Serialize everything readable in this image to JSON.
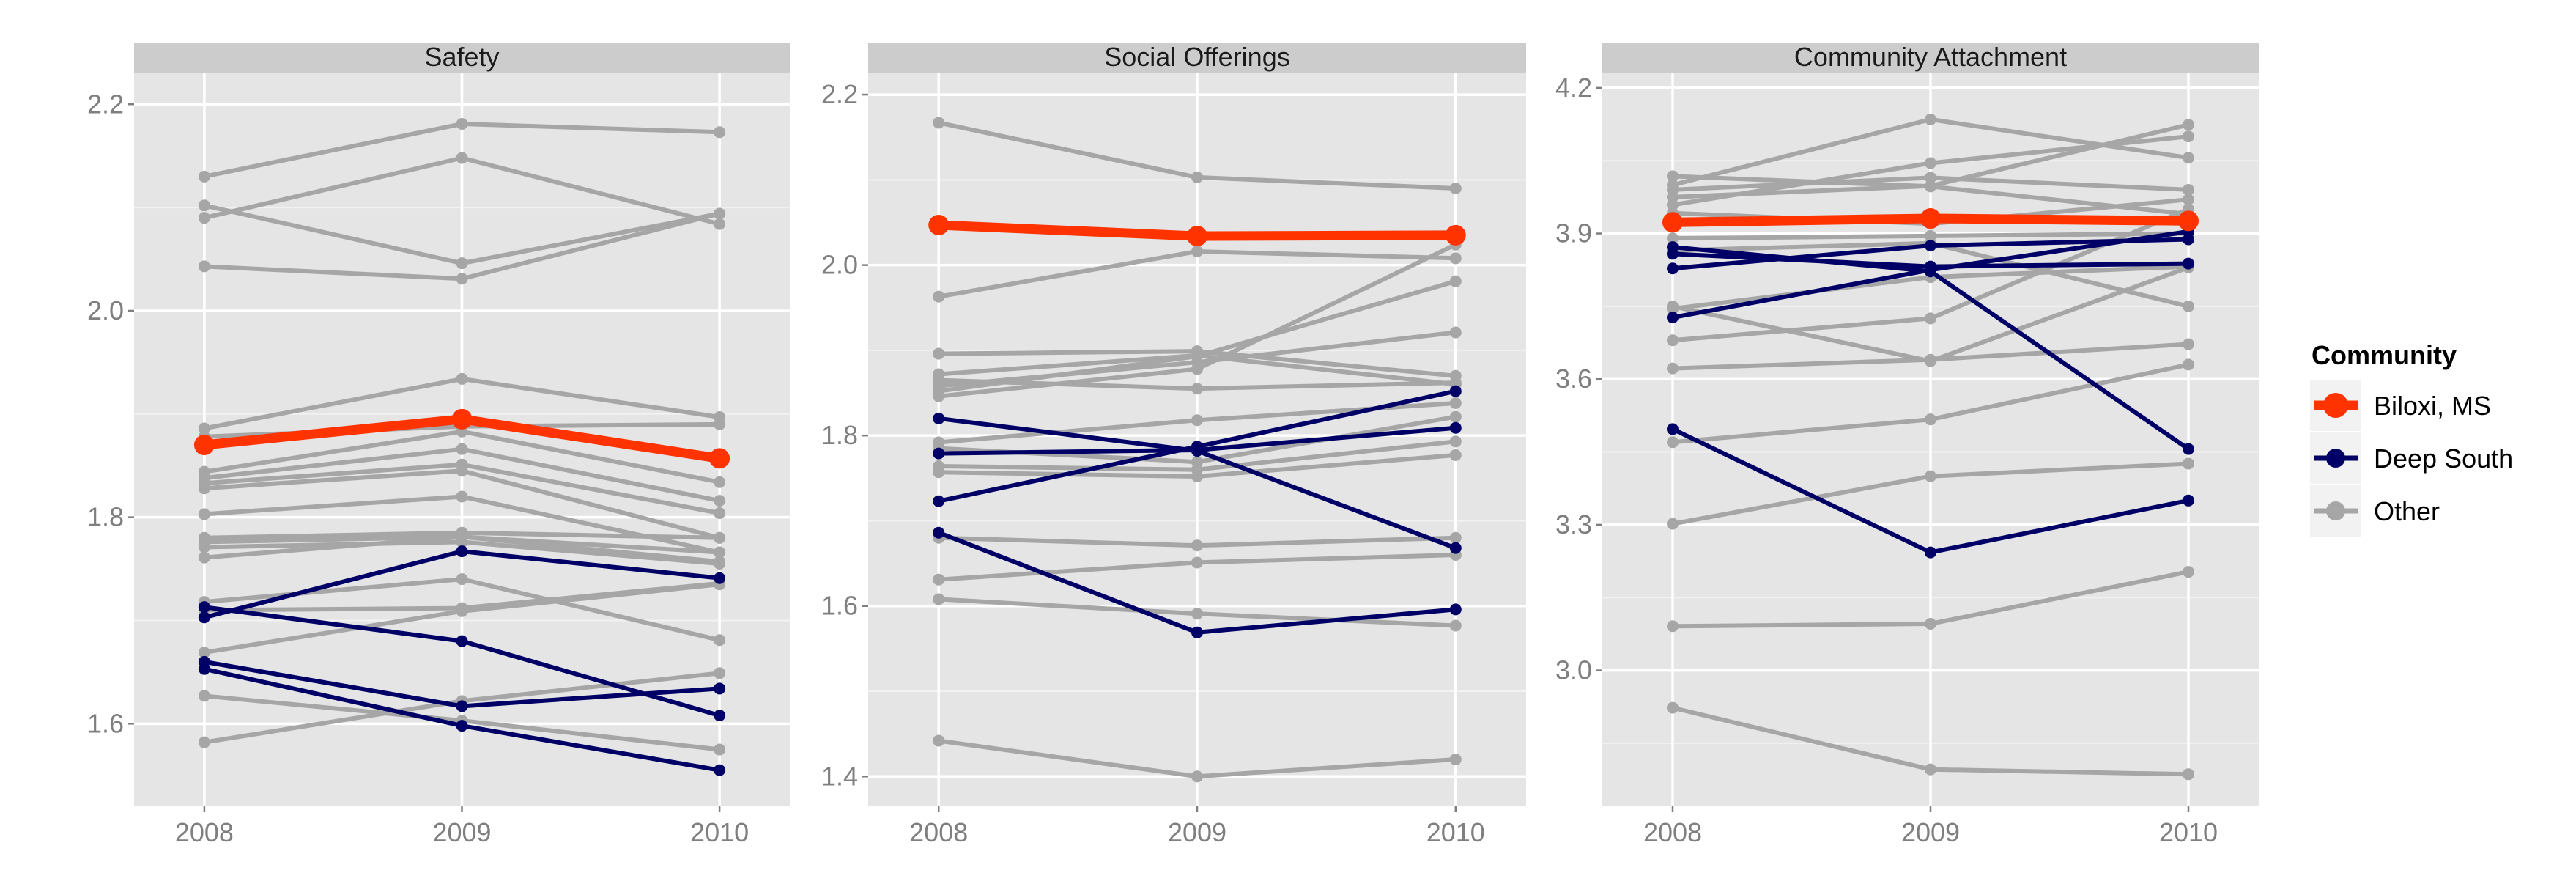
{
  "chart_data": [
    {
      "type": "line",
      "title": "Safety",
      "x": [
        "2008",
        "2009",
        "2010"
      ],
      "y_ticks": [
        "1.6",
        "1.8",
        "2.0",
        "2.2"
      ],
      "ylim": [
        1.52,
        2.23
      ],
      "grid": true,
      "series": [
        {
          "group": "Biloxi, MS",
          "values": [
            1.87,
            1.895,
            1.857
          ]
        },
        {
          "group": "Deep South",
          "values": [
            1.703,
            1.767,
            1.741
          ]
        },
        {
          "group": "Deep South",
          "values": [
            1.713,
            1.68,
            1.608
          ]
        },
        {
          "group": "Deep South",
          "values": [
            1.66,
            1.617,
            1.634
          ]
        },
        {
          "group": "Deep South",
          "values": [
            1.653,
            1.598,
            1.555
          ]
        },
        {
          "group": "Other",
          "values": [
            2.13,
            2.181,
            2.173
          ]
        },
        {
          "group": "Other",
          "values": [
            2.09,
            2.148,
            2.084
          ]
        },
        {
          "group": "Other",
          "values": [
            2.102,
            2.046,
            2.094
          ]
        },
        {
          "group": "Other",
          "values": [
            2.043,
            2.031,
            2.094
          ]
        },
        {
          "group": "Other",
          "values": [
            1.886,
            1.934,
            1.897
          ]
        },
        {
          "group": "Other",
          "values": [
            1.878,
            1.888,
            1.89
          ]
        },
        {
          "group": "Other",
          "values": [
            1.844,
            1.883,
            1.834
          ]
        },
        {
          "group": "Other",
          "values": [
            1.838,
            1.866,
            1.816
          ]
        },
        {
          "group": "Other",
          "values": [
            1.833,
            1.851,
            1.804
          ]
        },
        {
          "group": "Other",
          "values": [
            1.828,
            1.845,
            1.78
          ]
        },
        {
          "group": "Other",
          "values": [
            1.803,
            1.82,
            1.766
          ]
        },
        {
          "group": "Other",
          "values": [
            1.78,
            1.785,
            1.78
          ]
        },
        {
          "group": "Other",
          "values": [
            1.776,
            1.781,
            1.766
          ]
        },
        {
          "group": "Other",
          "values": [
            1.771,
            1.776,
            1.755
          ]
        },
        {
          "group": "Other",
          "values": [
            1.761,
            1.781,
            1.757
          ]
        },
        {
          "group": "Other",
          "values": [
            1.718,
            1.74,
            1.681
          ]
        },
        {
          "group": "Other",
          "values": [
            1.71,
            1.712,
            1.736
          ]
        },
        {
          "group": "Other",
          "values": [
            1.669,
            1.709,
            1.735
          ]
        },
        {
          "group": "Other",
          "values": [
            1.627,
            1.603,
            1.575
          ]
        },
        {
          "group": "Other",
          "values": [
            1.582,
            1.622,
            1.649
          ]
        }
      ]
    },
    {
      "type": "line",
      "title": "Social Offerings",
      "x": [
        "2008",
        "2009",
        "2010"
      ],
      "y_ticks": [
        "1.4",
        "1.6",
        "1.8",
        "2.0",
        "2.2"
      ],
      "ylim": [
        1.365,
        2.225
      ],
      "grid": true,
      "series": [
        {
          "group": "Biloxi, MS",
          "values": [
            2.047,
            2.034,
            2.035
          ]
        },
        {
          "group": "Deep South",
          "values": [
            1.82,
            1.782,
            1.668
          ]
        },
        {
          "group": "Deep South",
          "values": [
            1.779,
            1.783,
            1.809
          ]
        },
        {
          "group": "Deep South",
          "values": [
            1.723,
            1.787,
            1.852
          ]
        },
        {
          "group": "Deep South",
          "values": [
            1.686,
            1.569,
            1.596
          ]
        },
        {
          "group": "Other",
          "values": [
            2.167,
            2.103,
            2.09
          ]
        },
        {
          "group": "Other",
          "values": [
            1.963,
            2.016,
            2.008
          ]
        },
        {
          "group": "Other",
          "values": [
            1.896,
            1.899,
            1.87
          ]
        },
        {
          "group": "Other",
          "values": [
            1.872,
            1.894,
            1.86
          ]
        },
        {
          "group": "Other",
          "values": [
            1.865,
            1.855,
            1.862
          ]
        },
        {
          "group": "Other",
          "values": [
            1.858,
            1.886,
            1.921
          ]
        },
        {
          "group": "Other",
          "values": [
            1.852,
            1.893,
            1.981
          ]
        },
        {
          "group": "Other",
          "values": [
            1.846,
            1.878,
            2.024
          ]
        },
        {
          "group": "Other",
          "values": [
            1.792,
            1.818,
            1.838
          ]
        },
        {
          "group": "Other",
          "values": [
            1.785,
            1.769,
            1.822
          ]
        },
        {
          "group": "Other",
          "values": [
            1.764,
            1.76,
            1.793
          ]
        },
        {
          "group": "Other",
          "values": [
            1.757,
            1.752,
            1.777
          ]
        },
        {
          "group": "Other",
          "values": [
            1.68,
            1.671,
            1.68
          ]
        },
        {
          "group": "Other",
          "values": [
            1.631,
            1.651,
            1.66
          ]
        },
        {
          "group": "Other",
          "values": [
            1.608,
            1.591,
            1.577
          ]
        },
        {
          "group": "Other",
          "values": [
            1.442,
            1.4,
            1.42
          ]
        }
      ]
    },
    {
      "type": "line",
      "title": "Community Attachment",
      "x": [
        "2008",
        "2009",
        "2010"
      ],
      "y_ticks": [
        "3.0",
        "3.3",
        "3.6",
        "3.9",
        "4.2"
      ],
      "ylim": [
        2.72,
        4.23
      ],
      "grid": true,
      "series": [
        {
          "group": "Biloxi, MS",
          "values": [
            3.923,
            3.931,
            3.926
          ]
        },
        {
          "group": "Deep South",
          "values": [
            3.872,
            3.822,
            3.456
          ]
        },
        {
          "group": "Deep South",
          "values": [
            3.828,
            3.875,
            3.888
          ]
        },
        {
          "group": "Deep South",
          "values": [
            3.727,
            3.825,
            3.904
          ]
        },
        {
          "group": "Deep South",
          "values": [
            3.497,
            3.243,
            3.35
          ]
        },
        {
          "group": "Deep South",
          "values": [
            3.858,
            3.832,
            3.838
          ]
        },
        {
          "group": "Other",
          "values": [
            4.018,
            3.997,
            3.94
          ]
        },
        {
          "group": "Other",
          "values": [
            4.0,
            4.135,
            4.056
          ]
        },
        {
          "group": "Other",
          "values": [
            3.99,
            4.015,
            3.99
          ]
        },
        {
          "group": "Other",
          "values": [
            3.975,
            3.998,
            4.124
          ]
        },
        {
          "group": "Other",
          "values": [
            3.959,
            4.045,
            4.1
          ]
        },
        {
          "group": "Other",
          "values": [
            3.942,
            3.92,
            3.97
          ]
        },
        {
          "group": "Other",
          "values": [
            3.89,
            3.895,
            3.9
          ]
        },
        {
          "group": "Other",
          "values": [
            3.865,
            3.88,
            3.75
          ]
        },
        {
          "group": "Other",
          "values": [
            3.75,
            3.637,
            3.83
          ]
        },
        {
          "group": "Other",
          "values": [
            3.745,
            3.81,
            3.832
          ]
        },
        {
          "group": "Other",
          "values": [
            3.68,
            3.725,
            3.95
          ]
        },
        {
          "group": "Other",
          "values": [
            3.622,
            3.64,
            3.672
          ]
        },
        {
          "group": "Other",
          "values": [
            3.47,
            3.517,
            3.63
          ]
        },
        {
          "group": "Other",
          "values": [
            3.302,
            3.4,
            3.426
          ]
        },
        {
          "group": "Other",
          "values": [
            3.091,
            3.096,
            3.203
          ]
        },
        {
          "group": "Other",
          "values": [
            2.923,
            2.796,
            2.786
          ]
        }
      ]
    }
  ],
  "legend": {
    "title": "Community",
    "items": [
      {
        "label": "Biloxi, MS",
        "color": "#ff3300"
      },
      {
        "label": "Deep South",
        "color": "#000066"
      },
      {
        "label": "Other",
        "color": "#a6a6a6"
      }
    ]
  },
  "colors": {
    "Biloxi, MS": "#ff3300",
    "Deep South": "#000066",
    "Other": "#a6a6a6",
    "panel_background": "#e5e5e5",
    "strip_background": "#cccccc",
    "grid_major": "#ffffff"
  }
}
